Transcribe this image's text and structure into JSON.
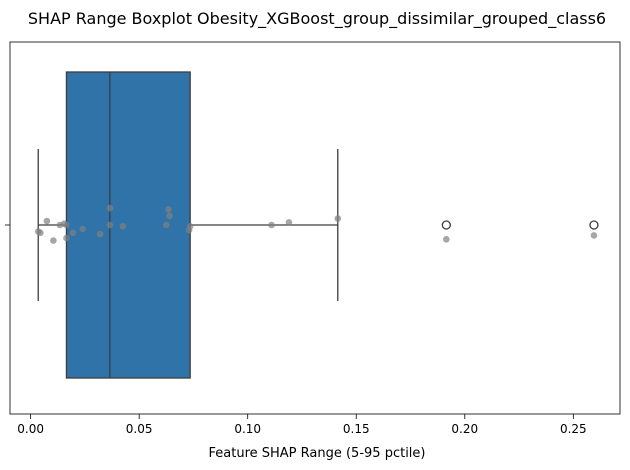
{
  "chart_data": {
    "type": "boxplot",
    "title": "SHAP Range Boxplot Obesity_XGBoost_group_dissimilar_grouped_class6",
    "xlabel": "Feature SHAP Range (5-95 pctile)",
    "ylabel": "",
    "xlim": [
      -0.0095,
      0.2715
    ],
    "xticks": [
      0.0,
      0.05,
      0.1,
      0.15,
      0.2,
      0.25
    ],
    "xtick_labels": [
      "0.00",
      "0.05",
      "0.10",
      "0.15",
      "0.20",
      "0.25"
    ],
    "ytick_labels": [
      ""
    ],
    "box": {
      "whisker_low": 0.0035,
      "q1": 0.0165,
      "median": 0.0365,
      "q3": 0.0735,
      "whisker_high": 0.1415,
      "fliers": [
        0.1915,
        0.2595
      ],
      "color": "#2f73a8"
    },
    "points": [
      {
        "x": 0.0035,
        "jitter": -0.05
      },
      {
        "x": 0.0045,
        "jitter": -0.06
      },
      {
        "x": 0.0075,
        "jitter": 0.03
      },
      {
        "x": 0.0105,
        "jitter": -0.12
      },
      {
        "x": 0.0135,
        "jitter": 0.0
      },
      {
        "x": 0.0155,
        "jitter": 0.01
      },
      {
        "x": 0.0165,
        "jitter": 0.0
      },
      {
        "x": 0.0165,
        "jitter": -0.1
      },
      {
        "x": 0.0195,
        "jitter": -0.06
      },
      {
        "x": 0.024,
        "jitter": -0.03
      },
      {
        "x": 0.032,
        "jitter": -0.07
      },
      {
        "x": 0.0365,
        "jitter": 0.13
      },
      {
        "x": 0.0365,
        "jitter": 0.0
      },
      {
        "x": 0.0425,
        "jitter": -0.01
      },
      {
        "x": 0.0625,
        "jitter": 0.0
      },
      {
        "x": 0.0635,
        "jitter": 0.12
      },
      {
        "x": 0.064,
        "jitter": 0.07
      },
      {
        "x": 0.073,
        "jitter": -0.04
      },
      {
        "x": 0.0735,
        "jitter": -0.01
      },
      {
        "x": 0.111,
        "jitter": 0.0
      },
      {
        "x": 0.119,
        "jitter": 0.02
      },
      {
        "x": 0.1415,
        "jitter": 0.05
      },
      {
        "x": 0.1915,
        "jitter": -0.11
      },
      {
        "x": 0.2595,
        "jitter": -0.08
      }
    ],
    "point_color": "#808080",
    "grid": false,
    "legend": "none"
  }
}
